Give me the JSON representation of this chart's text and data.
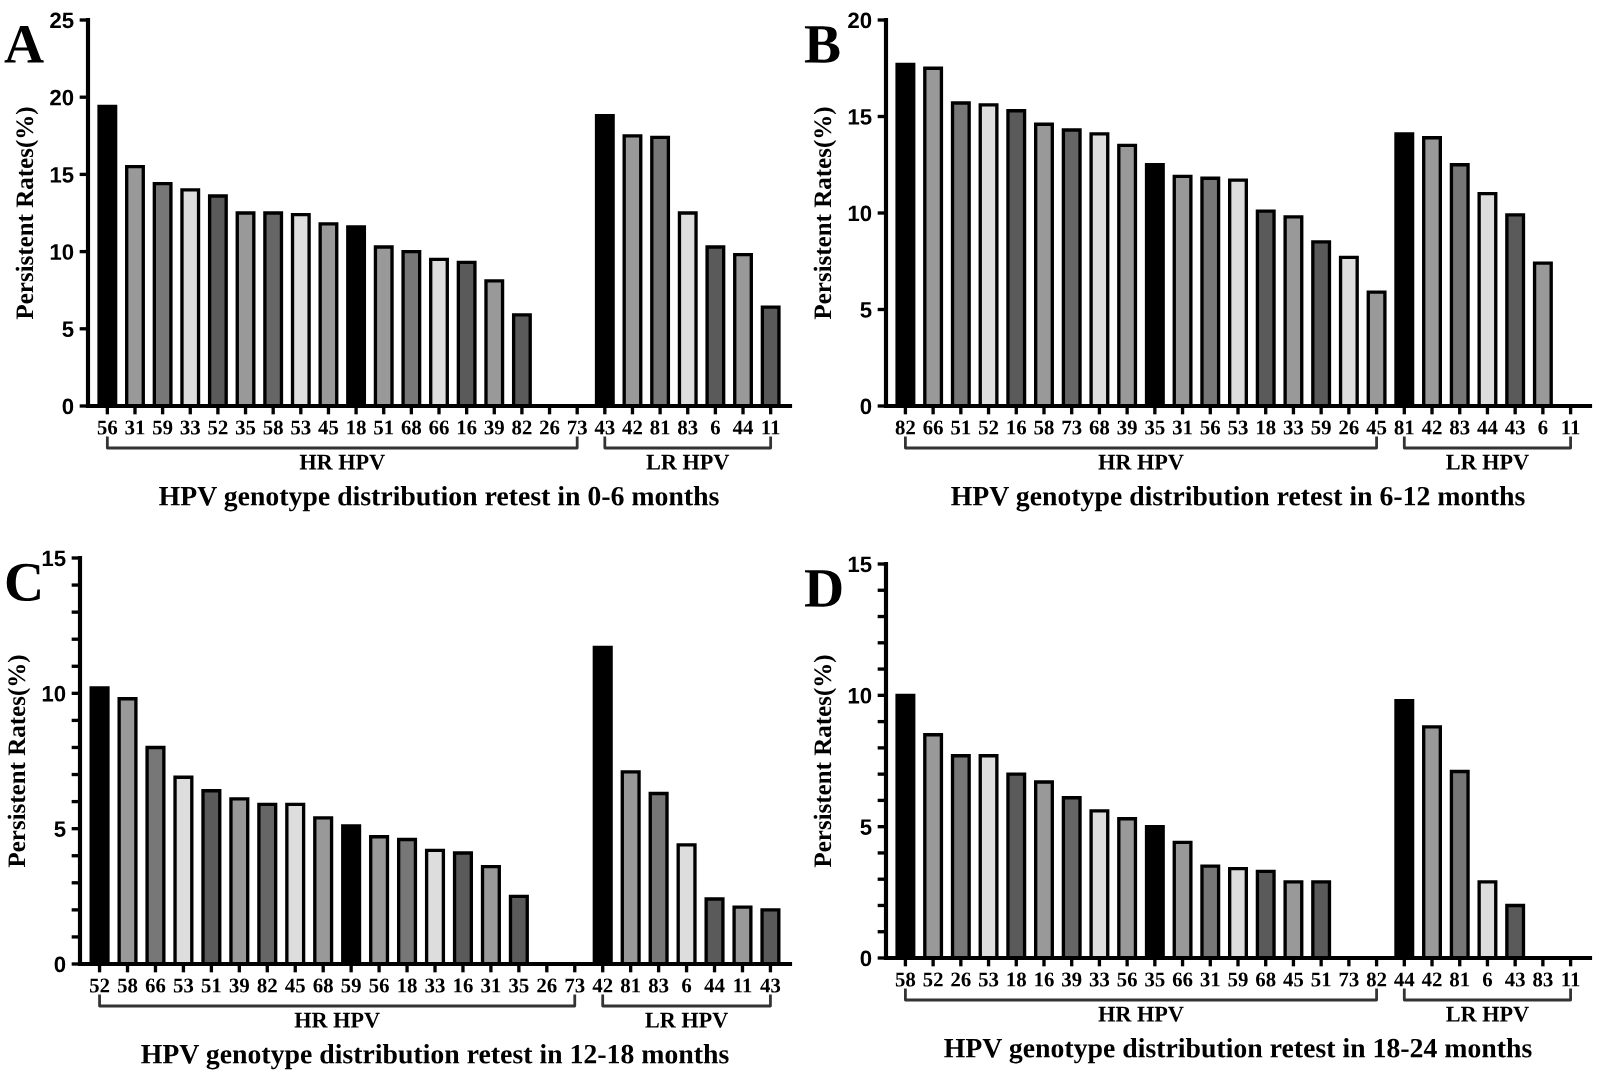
{
  "chart_data": [
    {
      "type": "bar",
      "annotations": [
        "A",
        "HR HPV",
        "LR HPV"
      ],
      "xlabel": "HPV genotype distribution retest in 0-6 months",
      "ylabel": "Persistent Rates(%)",
      "categories": [
        "56",
        "31",
        "59",
        "33",
        "52",
        "35",
        "58",
        "53",
        "45",
        "18",
        "51",
        "68",
        "66",
        "16",
        "39",
        "82",
        "26",
        "73",
        "43",
        "42",
        "81",
        "83",
        "6",
        "44",
        "11"
      ],
      "values": [
        19.4,
        15.5,
        14.4,
        14.0,
        13.6,
        12.5,
        12.5,
        12.4,
        11.8,
        11.6,
        10.3,
        10.0,
        9.5,
        9.3,
        8.1,
        5.9,
        0,
        0,
        18.8,
        17.5,
        17.4,
        12.5,
        10.3,
        9.8,
        6.4
      ],
      "colors": [
        "#000000",
        "#999999",
        "#777777",
        "#dddddd",
        "#5a5a5a",
        "#999999",
        "#666666",
        "#dddddd",
        "#999999",
        "#000000",
        "#999999",
        "#777777",
        "#dddddd",
        "#5a5a5a",
        "#999999",
        "#5a5a5a",
        "#999999",
        "#777777",
        "#000000",
        "#999999",
        "#777777",
        "#dddddd",
        "#5a5a5a",
        "#999999",
        "#5a5a5a"
      ],
      "ylim": [
        0,
        25
      ],
      "yticks": [
        0,
        5,
        10,
        15,
        20,
        25
      ],
      "grid": false
    },
    {
      "type": "bar",
      "annotations": [
        "B",
        "HR HPV",
        "LR HPV"
      ],
      "xlabel": "HPV genotype distribution retest in 6-12 months",
      "ylabel": "Persistent Rates(%)",
      "categories": [
        "82",
        "66",
        "51",
        "52",
        "16",
        "58",
        "73",
        "68",
        "39",
        "35",
        "31",
        "56",
        "53",
        "18",
        "33",
        "59",
        "26",
        "45",
        "81",
        "42",
        "83",
        "44",
        "43",
        "6",
        "11"
      ],
      "values": [
        17.7,
        17.5,
        15.7,
        15.6,
        15.3,
        14.6,
        14.3,
        14.1,
        13.5,
        12.5,
        11.9,
        11.8,
        11.7,
        10.1,
        9.8,
        8.5,
        7.7,
        5.9,
        14.1,
        13.9,
        12.5,
        11.0,
        9.9,
        7.4,
        0
      ],
      "colors": [
        "#000000",
        "#999999",
        "#777777",
        "#dddddd",
        "#5a5a5a",
        "#999999",
        "#666666",
        "#dddddd",
        "#999999",
        "#000000",
        "#999999",
        "#777777",
        "#dddddd",
        "#5a5a5a",
        "#999999",
        "#5a5a5a",
        "#dddddd",
        "#999999",
        "#000000",
        "#999999",
        "#777777",
        "#dddddd",
        "#5a5a5a",
        "#999999",
        "#5a5a5a"
      ],
      "ylim": [
        0,
        20
      ],
      "yticks": [
        0,
        5,
        10,
        15,
        20
      ],
      "grid": false
    },
    {
      "type": "bar",
      "annotations": [
        "C",
        "HR HPV",
        "LR HPV"
      ],
      "xlabel": "HPV genotype distribution retest in 12-18 months",
      "ylabel": "Persistent Rates(%)",
      "categories": [
        "52",
        "58",
        "66",
        "53",
        "51",
        "39",
        "82",
        "45",
        "68",
        "59",
        "56",
        "18",
        "33",
        "16",
        "31",
        "35",
        "26",
        "73",
        "42",
        "81",
        "83",
        "6",
        "44",
        "11",
        "43"
      ],
      "values": [
        10.2,
        9.8,
        8.0,
        6.9,
        6.4,
        6.1,
        5.9,
        5.9,
        5.4,
        5.1,
        4.7,
        4.6,
        4.2,
        4.1,
        3.6,
        2.5,
        0,
        0,
        11.7,
        7.1,
        6.3,
        4.4,
        2.4,
        2.1,
        2.0
      ],
      "colors": [
        "#000000",
        "#999999",
        "#777777",
        "#dddddd",
        "#5a5a5a",
        "#999999",
        "#666666",
        "#dddddd",
        "#999999",
        "#000000",
        "#999999",
        "#777777",
        "#dddddd",
        "#5a5a5a",
        "#999999",
        "#5a5a5a",
        "#999999",
        "#777777",
        "#000000",
        "#999999",
        "#777777",
        "#dddddd",
        "#5a5a5a",
        "#999999",
        "#5a5a5a"
      ],
      "ylim": [
        0,
        15
      ],
      "yticks": [
        0,
        {
          "value": 1,
          "label": null
        },
        {
          "value": 2,
          "label": null
        },
        {
          "value": 3,
          "label": null
        },
        {
          "value": 4,
          "label": null
        },
        5,
        {
          "value": 6,
          "label": null
        },
        {
          "value": 7,
          "label": null
        },
        {
          "value": 8,
          "label": null
        },
        {
          "value": 9,
          "label": null
        },
        10,
        {
          "value": 11,
          "label": null
        },
        {
          "value": 12,
          "label": null
        },
        {
          "value": 13,
          "label": null
        },
        {
          "value": 14,
          "label": null
        },
        15
      ],
      "grid": false
    },
    {
      "type": "bar",
      "annotations": [
        "D",
        "HR HPV",
        "LR HPV"
      ],
      "xlabel": "HPV genotype distribution retest in 18-24 months",
      "ylabel": "Persistent Rates(%)",
      "categories": [
        "58",
        "52",
        "26",
        "53",
        "18",
        "16",
        "39",
        "33",
        "56",
        "35",
        "66",
        "31",
        "59",
        "68",
        "45",
        "51",
        "73",
        "82",
        "44",
        "42",
        "81",
        "6",
        "43",
        "83",
        "11"
      ],
      "values": [
        10.0,
        8.5,
        7.7,
        7.7,
        7.0,
        6.7,
        6.1,
        5.6,
        5.3,
        5.0,
        4.4,
        3.5,
        3.4,
        3.3,
        2.9,
        2.9,
        0,
        0,
        9.8,
        8.8,
        7.1,
        2.9,
        2.0,
        0,
        0
      ],
      "colors": [
        "#000000",
        "#999999",
        "#777777",
        "#dddddd",
        "#5a5a5a",
        "#999999",
        "#666666",
        "#dddddd",
        "#999999",
        "#000000",
        "#999999",
        "#777777",
        "#dddddd",
        "#5a5a5a",
        "#999999",
        "#5a5a5a",
        "#999999",
        "#777777",
        "#000000",
        "#999999",
        "#777777",
        "#dddddd",
        "#5a5a5a",
        "#999999",
        "#5a5a5a"
      ],
      "ylim": [
        0,
        15
      ],
      "yticks": [
        0,
        {
          "value": 1,
          "label": null
        },
        {
          "value": 2,
          "label": null
        },
        {
          "value": 3,
          "label": null
        },
        {
          "value": 4,
          "label": null
        },
        5,
        {
          "value": 6,
          "label": null
        },
        {
          "value": 7,
          "label": null
        },
        {
          "value": 8,
          "label": null
        },
        {
          "value": 9,
          "label": null
        },
        10,
        {
          "value": 11,
          "label": null
        },
        {
          "value": 12,
          "label": null
        },
        {
          "value": 13,
          "label": null
        },
        {
          "value": 14,
          "label": null
        },
        15
      ],
      "grid": false
    }
  ]
}
